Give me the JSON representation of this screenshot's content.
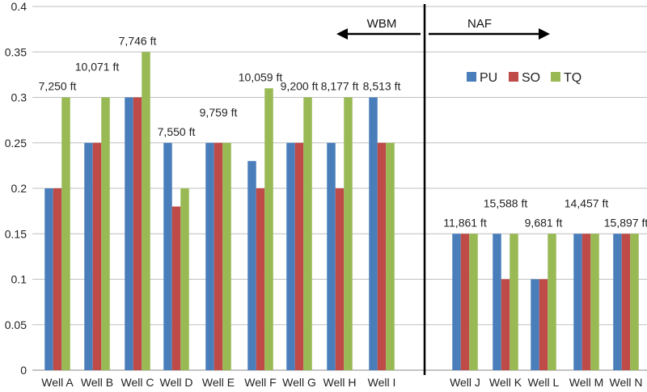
{
  "chart_data": {
    "type": "bar",
    "title": "",
    "xlabel": "",
    "ylabel": "",
    "ylim": [
      0,
      0.4
    ],
    "yticks": [
      0,
      0.05,
      0.1,
      0.15,
      0.2,
      0.25,
      0.3,
      0.35,
      0.4
    ],
    "ytick_labels": [
      "0",
      "0.05",
      "0.1",
      "0.15",
      "0.2",
      "0.25",
      "0.3",
      "0.35",
      "0.4"
    ],
    "categories": [
      "Well A",
      "Well B",
      "Well C",
      "Well D",
      "Well E",
      "Well F",
      "Well G",
      "Well H",
      "Well I",
      "Well J",
      "Well K",
      "Well L",
      "Well M",
      "Well N"
    ],
    "depth_labels": [
      "7,250 ft",
      "10,071 ft",
      "7,746 ft",
      "7,550 ft",
      "9,759 ft",
      "10,059 ft",
      "9,200 ft",
      "8,177 ft",
      "8,513 ft",
      "11,861 ft",
      "15,588 ft",
      "9,681 ft",
      "14,457 ft",
      "15,897 ft"
    ],
    "series": [
      {
        "name": "PU",
        "color": "#4a7ebb",
        "values": [
          0.2,
          0.25,
          0.3,
          0.25,
          0.25,
          0.23,
          0.25,
          0.25,
          0.3,
          0.15,
          0.15,
          0.1,
          0.15,
          0.15
        ]
      },
      {
        "name": "SO",
        "color": "#be4b48",
        "values": [
          0.2,
          0.25,
          0.3,
          0.18,
          0.25,
          0.2,
          0.25,
          0.2,
          0.25,
          0.15,
          0.1,
          0.1,
          0.15,
          0.15
        ]
      },
      {
        "name": "TQ",
        "color": "#98b954",
        "values": [
          0.3,
          0.3,
          0.35,
          0.2,
          0.25,
          0.31,
          0.3,
          0.3,
          0.25,
          0.15,
          0.15,
          0.15,
          0.15,
          0.15
        ]
      }
    ],
    "legend_position": "upper-right",
    "grid": true,
    "regions": {
      "left_label": "WBM",
      "right_label": "NAF",
      "left_wells": [
        "Well A",
        "Well B",
        "Well C",
        "Well D",
        "Well E",
        "Well F",
        "Well G",
        "Well H",
        "Well I"
      ],
      "right_wells": [
        "Well J",
        "Well K",
        "Well L",
        "Well M",
        "Well N"
      ]
    }
  }
}
